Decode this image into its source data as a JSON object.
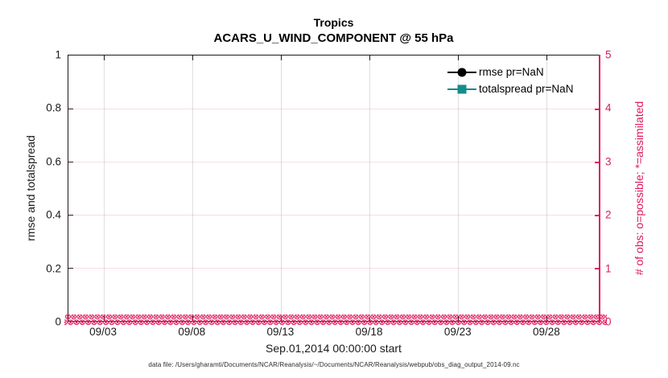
{
  "colors": {
    "pink": "#dc1c5c",
    "teal": "#178b8b",
    "black": "#000000",
    "grid_h_pink": "rgba(220,28,92,0.16)"
  },
  "title": {
    "line1": "Tropics",
    "line2": "ACARS_U_WIND_COMPONENT @ 55 hPa"
  },
  "left_axis": {
    "label": "rmse and totalspread",
    "tick_labels": [
      "0",
      "0.2",
      "0.4",
      "0.6",
      "0.8",
      "1"
    ],
    "tick_values": [
      0,
      0.2,
      0.4,
      0.6,
      0.8,
      1
    ],
    "min": 0,
    "max": 1
  },
  "right_axis": {
    "label": "# of obs: o=possible; *=assimilated",
    "tick_labels": [
      "0",
      "1",
      "2",
      "3",
      "4",
      "5"
    ],
    "tick_values": [
      0,
      1,
      2,
      3,
      4,
      5
    ],
    "min": 0,
    "max": 5
  },
  "x_axis": {
    "label": "Sep.01,2014 00:00:00 start",
    "tick_labels": [
      "09/03",
      "09/08",
      "09/13",
      "09/18",
      "09/23",
      "09/28"
    ],
    "tick_days": [
      2,
      7,
      12,
      17,
      22,
      27
    ],
    "span_days": 30
  },
  "legend": {
    "items": [
      {
        "label": "rmse pr=NaN",
        "marker": "circle",
        "color": "#000000"
      },
      {
        "label": "totalspread pr=NaN",
        "marker": "square",
        "color": "#178b8b"
      }
    ]
  },
  "obs_band": {
    "glyph": "⊗",
    "repeat_per_row": 115,
    "rows": 2,
    "meaning": "o=possible and *=assimilated obs count markers plotted at 0"
  },
  "footer": "data file: /Users/gharamti/Documents/NCAR/Reanalysis/~/Documents/NCAR/Reanalysis/webpub/obs_diag_output_2014-09.nc",
  "chart_data": {
    "type": "line",
    "title": "Tropics — ACARS_U_WIND_COMPONENT @ 55 hPa",
    "xlabel": "Sep.01,2014 00:00:00 start",
    "ylabel_left": "rmse and totalspread",
    "ylabel_right": "# of obs: o=possible; *=assimilated",
    "x_range": [
      "2014-09-01 00:00",
      "2014-10-01 00:00"
    ],
    "x_ticks": [
      "09/03",
      "09/08",
      "09/13",
      "09/18",
      "09/23",
      "09/28"
    ],
    "ylim_left": [
      0,
      1
    ],
    "ylim_right": [
      0,
      5
    ],
    "grid": true,
    "legend_position": "top-right-inside",
    "series": [
      {
        "name": "rmse pr=NaN",
        "axis": "left",
        "color": "#000000",
        "marker": "filled-circle",
        "values": "all NaN — no curve drawn"
      },
      {
        "name": "totalspread pr=NaN",
        "axis": "left",
        "color": "#178b8b",
        "marker": "filled-square",
        "values": "all NaN — no curve drawn"
      },
      {
        "name": "# of obs possible (o)",
        "axis": "right",
        "color": "#dc1c5c",
        "marker": "o",
        "values": "0 at every time step from Sep 01 to Sep 30"
      },
      {
        "name": "# of obs assimilated (*)",
        "axis": "right",
        "color": "#dc1c5c",
        "marker": "*",
        "values": "0 at every time step from Sep 01 to Sep 30"
      }
    ]
  }
}
